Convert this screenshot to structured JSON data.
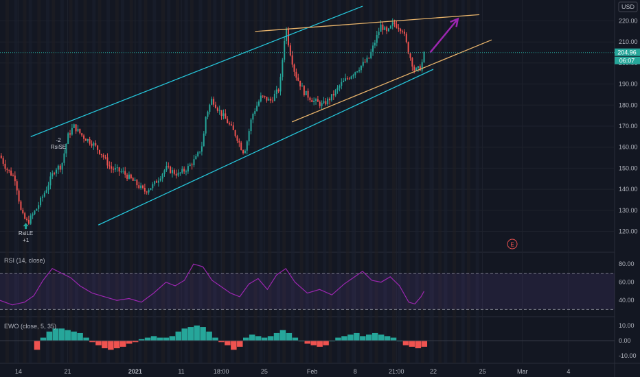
{
  "chart_data": [
    {
      "type": "candlestick",
      "currency_label": "USD",
      "ylim": [
        112,
        228
      ],
      "y_ticks": [
        "220.00",
        "210.00",
        "200.00",
        "190.00",
        "180.00",
        "170.00",
        "160.00",
        "150.00",
        "140.00",
        "130.00",
        "120.00"
      ],
      "y_tick_values": [
        220,
        210,
        200,
        190,
        180,
        170,
        160,
        150,
        140,
        130,
        120
      ],
      "x_ticks": [
        "14",
        "21",
        "2021",
        "11",
        "18:00",
        "25",
        "Feb",
        "8",
        "21:00",
        "22",
        "25",
        "Mar",
        "4"
      ],
      "x_tick_positions": [
        0.03,
        0.11,
        0.22,
        0.295,
        0.36,
        0.43,
        0.508,
        0.578,
        0.645,
        0.705,
        0.785,
        0.85,
        0.925
      ],
      "price_label": "204.96",
      "time_label": "06:07",
      "last_price": 204.96,
      "earnings_marker": "E",
      "signals": [
        {
          "text_top": "-2",
          "text": "RsiSE",
          "x": 0.095,
          "y": 158
        },
        {
          "text_top": "",
          "text": "RsiLE",
          "text_bottom": "+1",
          "x": 0.042,
          "y": 124
        }
      ],
      "path_points": [
        [
          0,
          156
        ],
        [
          0.01,
          150
        ],
        [
          0.025,
          145
        ],
        [
          0.035,
          128
        ],
        [
          0.045,
          124
        ],
        [
          0.06,
          131
        ],
        [
          0.075,
          140
        ],
        [
          0.09,
          150
        ],
        [
          0.1,
          151
        ],
        [
          0.11,
          165
        ],
        [
          0.12,
          170
        ],
        [
          0.135,
          165
        ],
        [
          0.15,
          162
        ],
        [
          0.165,
          157
        ],
        [
          0.18,
          150
        ],
        [
          0.2,
          148
        ],
        [
          0.22,
          143
        ],
        [
          0.235,
          139
        ],
        [
          0.25,
          142
        ],
        [
          0.27,
          150
        ],
        [
          0.29,
          147
        ],
        [
          0.305,
          150
        ],
        [
          0.32,
          155
        ],
        [
          0.33,
          162
        ],
        [
          0.335,
          175
        ],
        [
          0.345,
          183
        ],
        [
          0.355,
          178
        ],
        [
          0.37,
          172
        ],
        [
          0.385,
          165
        ],
        [
          0.395,
          158
        ],
        [
          0.4,
          160
        ],
        [
          0.41,
          175
        ],
        [
          0.425,
          184
        ],
        [
          0.44,
          182
        ],
        [
          0.455,
          188
        ],
        [
          0.465,
          218
        ],
        [
          0.47,
          208
        ],
        [
          0.48,
          195
        ],
        [
          0.495,
          186
        ],
        [
          0.51,
          182
        ],
        [
          0.525,
          180
        ],
        [
          0.54,
          184
        ],
        [
          0.555,
          190
        ],
        [
          0.57,
          194
        ],
        [
          0.585,
          198
        ],
        [
          0.6,
          202
        ],
        [
          0.61,
          210
        ],
        [
          0.62,
          218
        ],
        [
          0.63,
          214
        ],
        [
          0.64,
          219
        ],
        [
          0.655,
          216
        ],
        [
          0.665,
          205
        ],
        [
          0.675,
          196
        ],
        [
          0.685,
          198
        ],
        [
          0.69,
          204
        ]
      ],
      "trendlines": [
        {
          "color": "#26c6da",
          "from": [
            0.05,
            165
          ],
          "to": [
            0.59,
            227
          ]
        },
        {
          "color": "#26c6da",
          "from": [
            0.16,
            123
          ],
          "to": [
            0.705,
            197
          ]
        },
        {
          "color": "#e7b36b",
          "from": [
            0.415,
            215
          ],
          "to": [
            0.78,
            223
          ]
        },
        {
          "color": "#e7b36b",
          "from": [
            0.475,
            172
          ],
          "to": [
            0.8,
            211
          ]
        }
      ],
      "arrow": {
        "color": "#9c27b0",
        "from": [
          0.7,
          205
        ],
        "to": [
          0.745,
          221
        ]
      }
    },
    {
      "type": "line",
      "title": "RSI (14, close)",
      "ylim": [
        25,
        90
      ],
      "y_ticks": [
        "80.00",
        "60.00",
        "40.00"
      ],
      "y_tick_values": [
        80,
        60,
        40
      ],
      "band": [
        30,
        70
      ],
      "color": "#9c27b0",
      "x": [
        0,
        0.02,
        0.04,
        0.055,
        0.07,
        0.085,
        0.1,
        0.115,
        0.13,
        0.15,
        0.17,
        0.19,
        0.21,
        0.23,
        0.25,
        0.27,
        0.285,
        0.3,
        0.315,
        0.33,
        0.345,
        0.36,
        0.375,
        0.39,
        0.405,
        0.42,
        0.435,
        0.45,
        0.465,
        0.48,
        0.5,
        0.52,
        0.54,
        0.56,
        0.575,
        0.59,
        0.605,
        0.62,
        0.635,
        0.65,
        0.665,
        0.675,
        0.685,
        0.69
      ],
      "values": [
        40,
        35,
        38,
        45,
        62,
        75,
        70,
        65,
        56,
        48,
        44,
        40,
        42,
        38,
        48,
        60,
        56,
        62,
        80,
        77,
        62,
        55,
        48,
        44,
        58,
        64,
        52,
        68,
        75,
        60,
        48,
        52,
        46,
        58,
        65,
        72,
        62,
        60,
        66,
        56,
        38,
        36,
        44,
        50
      ]
    },
    {
      "type": "bar",
      "title": "EWO (close, 5, 35)",
      "ylim": [
        -14,
        14
      ],
      "y_ticks": [
        "10.00",
        "0.00",
        "-10.00"
      ],
      "y_tick_values": [
        10,
        0,
        -10
      ],
      "positive_color": "#26a69a",
      "negative_color": "#ef5350",
      "x": [
        0.06,
        0.07,
        0.08,
        0.09,
        0.1,
        0.11,
        0.12,
        0.13,
        0.14,
        0.15,
        0.16,
        0.17,
        0.18,
        0.19,
        0.2,
        0.21,
        0.22,
        0.23,
        0.24,
        0.25,
        0.26,
        0.27,
        0.28,
        0.29,
        0.3,
        0.31,
        0.32,
        0.33,
        0.34,
        0.35,
        0.36,
        0.37,
        0.38,
        0.39,
        0.4,
        0.41,
        0.42,
        0.43,
        0.44,
        0.45,
        0.46,
        0.47,
        0.48,
        0.49,
        0.5,
        0.51,
        0.52,
        0.53,
        0.54,
        0.55,
        0.56,
        0.57,
        0.58,
        0.59,
        0.6,
        0.61,
        0.62,
        0.63,
        0.64,
        0.65,
        0.66,
        0.67,
        0.68,
        0.69
      ],
      "values": [
        -6,
        2,
        6,
        8,
        8,
        7,
        6,
        5,
        2,
        -1,
        -3,
        -5,
        -6,
        -5,
        -4,
        -2,
        -1,
        1,
        2,
        3,
        2,
        2,
        3,
        6,
        8,
        9,
        10,
        9,
        6,
        2,
        -1,
        -3,
        -6,
        -4,
        2,
        4,
        3,
        2,
        3,
        5,
        7,
        5,
        2,
        0,
        -2,
        -3,
        -4,
        -3,
        0,
        2,
        3,
        4,
        5,
        3,
        4,
        5,
        4,
        3,
        2,
        0,
        -3,
        -4,
        -5,
        -4
      ]
    }
  ]
}
